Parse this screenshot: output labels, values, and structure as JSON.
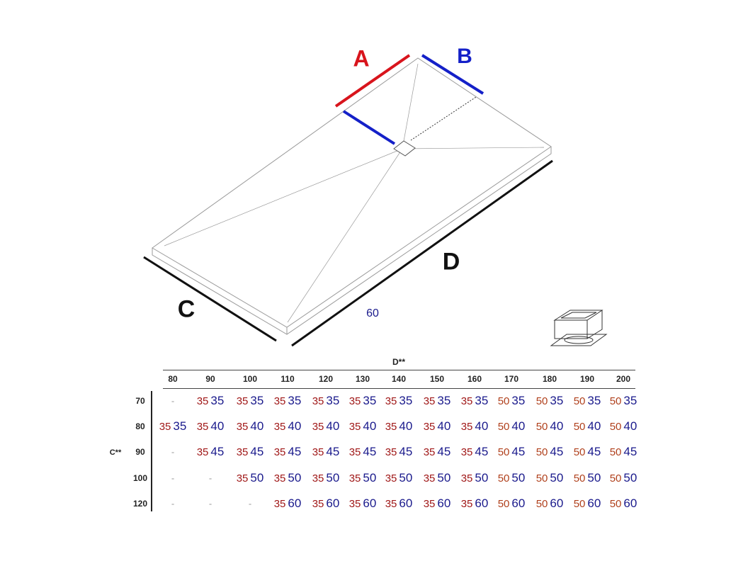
{
  "diagram": {
    "labels": {
      "a": "A",
      "b": "B",
      "c": "C",
      "d": "D",
      "depth_value": "60"
    },
    "colors": {
      "a_line": "#d8141c",
      "b_line": "#1420c8",
      "dimension_line": "#111111",
      "first_value": "#a01818",
      "first_value_50": "#b0401c",
      "second_value": "#1a1a8c"
    },
    "icons": [
      "shower-tray-outline",
      "drain-box-icon"
    ]
  },
  "table": {
    "column_group_label": "D**",
    "row_group_label": "C**",
    "columns": [
      "80",
      "90",
      "100",
      "110",
      "120",
      "130",
      "140",
      "150",
      "160",
      "170",
      "180",
      "190",
      "200"
    ],
    "rows": [
      {
        "label": "70",
        "cells": [
          "-",
          "35 35",
          "35 35",
          "35 35",
          "35 35",
          "35 35",
          "35 35",
          "35 35",
          "35 35",
          "50 35",
          "50 35",
          "50 35",
          "50 35"
        ]
      },
      {
        "label": "80",
        "cells": [
          "35 35",
          "35 40",
          "35 40",
          "35 40",
          "35 40",
          "35 40",
          "35 40",
          "35 40",
          "35 40",
          "50 40",
          "50 40",
          "50 40",
          "50 40"
        ]
      },
      {
        "label": "90",
        "cells": [
          "-",
          "35 45",
          "35 45",
          "35 45",
          "35 45",
          "35 45",
          "35 45",
          "35 45",
          "35 45",
          "50 45",
          "50 45",
          "50 45",
          "50 45"
        ]
      },
      {
        "label": "100",
        "cells": [
          "-",
          "-",
          "35 50",
          "35 50",
          "35 50",
          "35 50",
          "35 50",
          "35 50",
          "35 50",
          "50 50",
          "50 50",
          "50 50",
          "50 50"
        ]
      },
      {
        "label": "120",
        "cells": [
          "-",
          "-",
          "-",
          "35 60",
          "35 60",
          "35 60",
          "35 60",
          "35 60",
          "35 60",
          "50 60",
          "50 60",
          "50 60",
          "50 60"
        ]
      }
    ]
  }
}
